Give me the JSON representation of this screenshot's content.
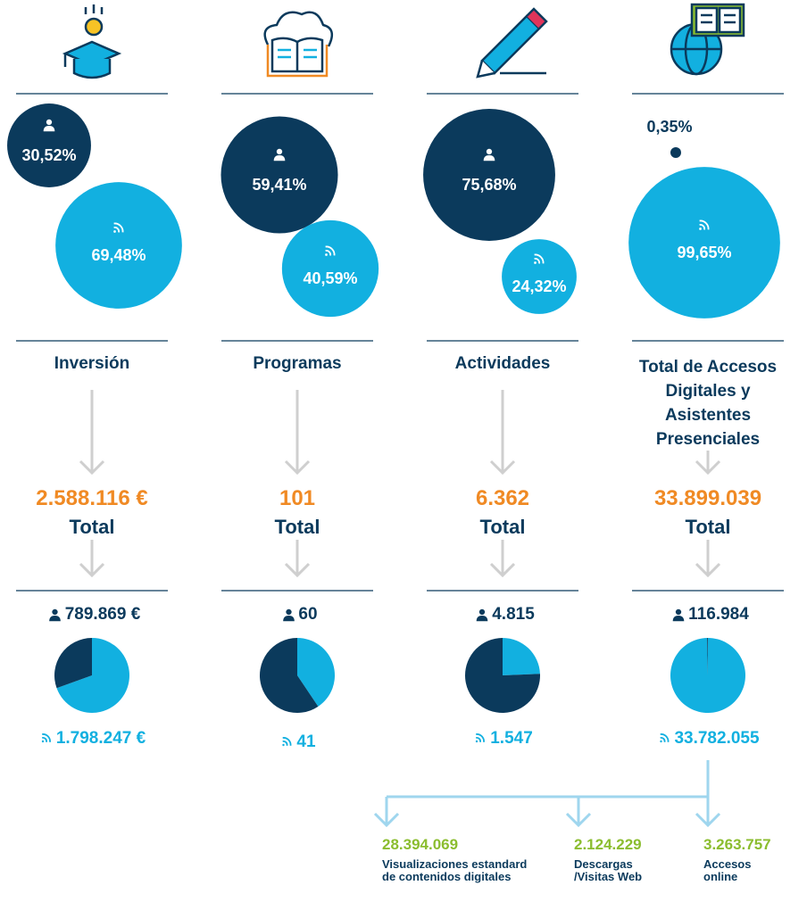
{
  "columns": [
    {
      "title": "Inversión",
      "presencial_share": {
        "value": 30.52,
        "label": "30,52%"
      },
      "online_share": {
        "value": 69.48,
        "label": "69,48%"
      },
      "total": "2.588.116 €",
      "total_label": "Total",
      "presencial": "789.869 €",
      "online": "1.798.247 €"
    },
    {
      "title": "Programas",
      "presencial_share": {
        "value": 59.41,
        "label": "59,41%"
      },
      "online_share": {
        "value": 40.59,
        "label": "40,59%"
      },
      "total": "101",
      "total_label": "Total",
      "presencial": "60",
      "online": "41"
    },
    {
      "title": "Actividades",
      "presencial_share": {
        "value": 75.68,
        "label": "75,68%"
      },
      "online_share": {
        "value": 24.32,
        "label": "24,32%"
      },
      "total": "6.362",
      "total_label": "Total",
      "presencial": "4.815",
      "online": "1.547"
    },
    {
      "title": "Total de Accesos Digitales y Asistentes Presenciales",
      "presencial_share": {
        "value": 0.35,
        "label": "0,35%"
      },
      "online_share": {
        "value": 99.65,
        "label": "99,65%"
      },
      "total": "33.899.039",
      "total_label": "Total",
      "presencial": "116.984",
      "online": "33.782.055"
    }
  ],
  "breakdown": [
    {
      "value": "28.394.069",
      "label": "Visualizaciones estandard de contenidos digitales"
    },
    {
      "value": "2.124.229",
      "label": "Descargas /Visitas Web"
    },
    {
      "value": "3.263.757",
      "label": "Accesos online"
    }
  ]
}
